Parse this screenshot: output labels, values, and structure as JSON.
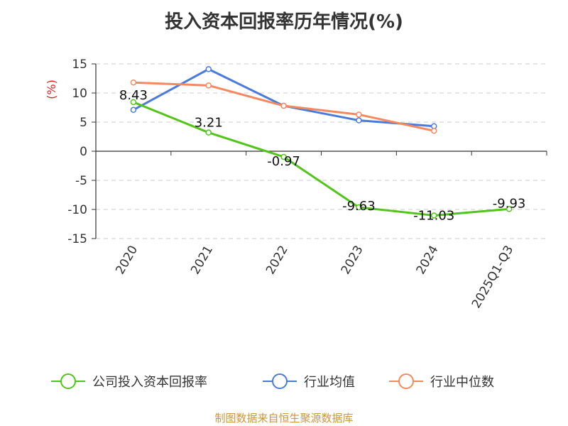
{
  "title": "投入资本回报率历年情况(%)",
  "source": "制图数据来自恒生聚源数据库",
  "chart_data": {
    "type": "line",
    "title": "投入资本回报率历年情况(%)",
    "ylabel": "(%)",
    "categories": [
      "2020",
      "2021",
      "2022",
      "2023",
      "2024",
      "2025Q1-Q3"
    ],
    "ylim": [
      -15,
      15
    ],
    "yticks": [
      15,
      10,
      5,
      0,
      -5,
      -10,
      -15
    ],
    "grid": true,
    "legend_position": "bottom",
    "series": [
      {
        "name": "公司投入资本回报率",
        "color": "#52c41a",
        "values": [
          8.43,
          3.21,
          -0.97,
          -9.63,
          -11.03,
          -9.93
        ],
        "labels": [
          "8.43",
          "3.21",
          "-0.97",
          "-9.63",
          "-11.03",
          "-9.93"
        ]
      },
      {
        "name": "行业均值",
        "color": "#4a7bdc",
        "values": [
          7.1,
          14.1,
          7.8,
          5.3,
          4.3,
          null
        ]
      },
      {
        "name": "行业中位数",
        "color": "#f4895f",
        "values": [
          11.8,
          11.3,
          7.8,
          6.3,
          3.5,
          null
        ]
      }
    ]
  }
}
